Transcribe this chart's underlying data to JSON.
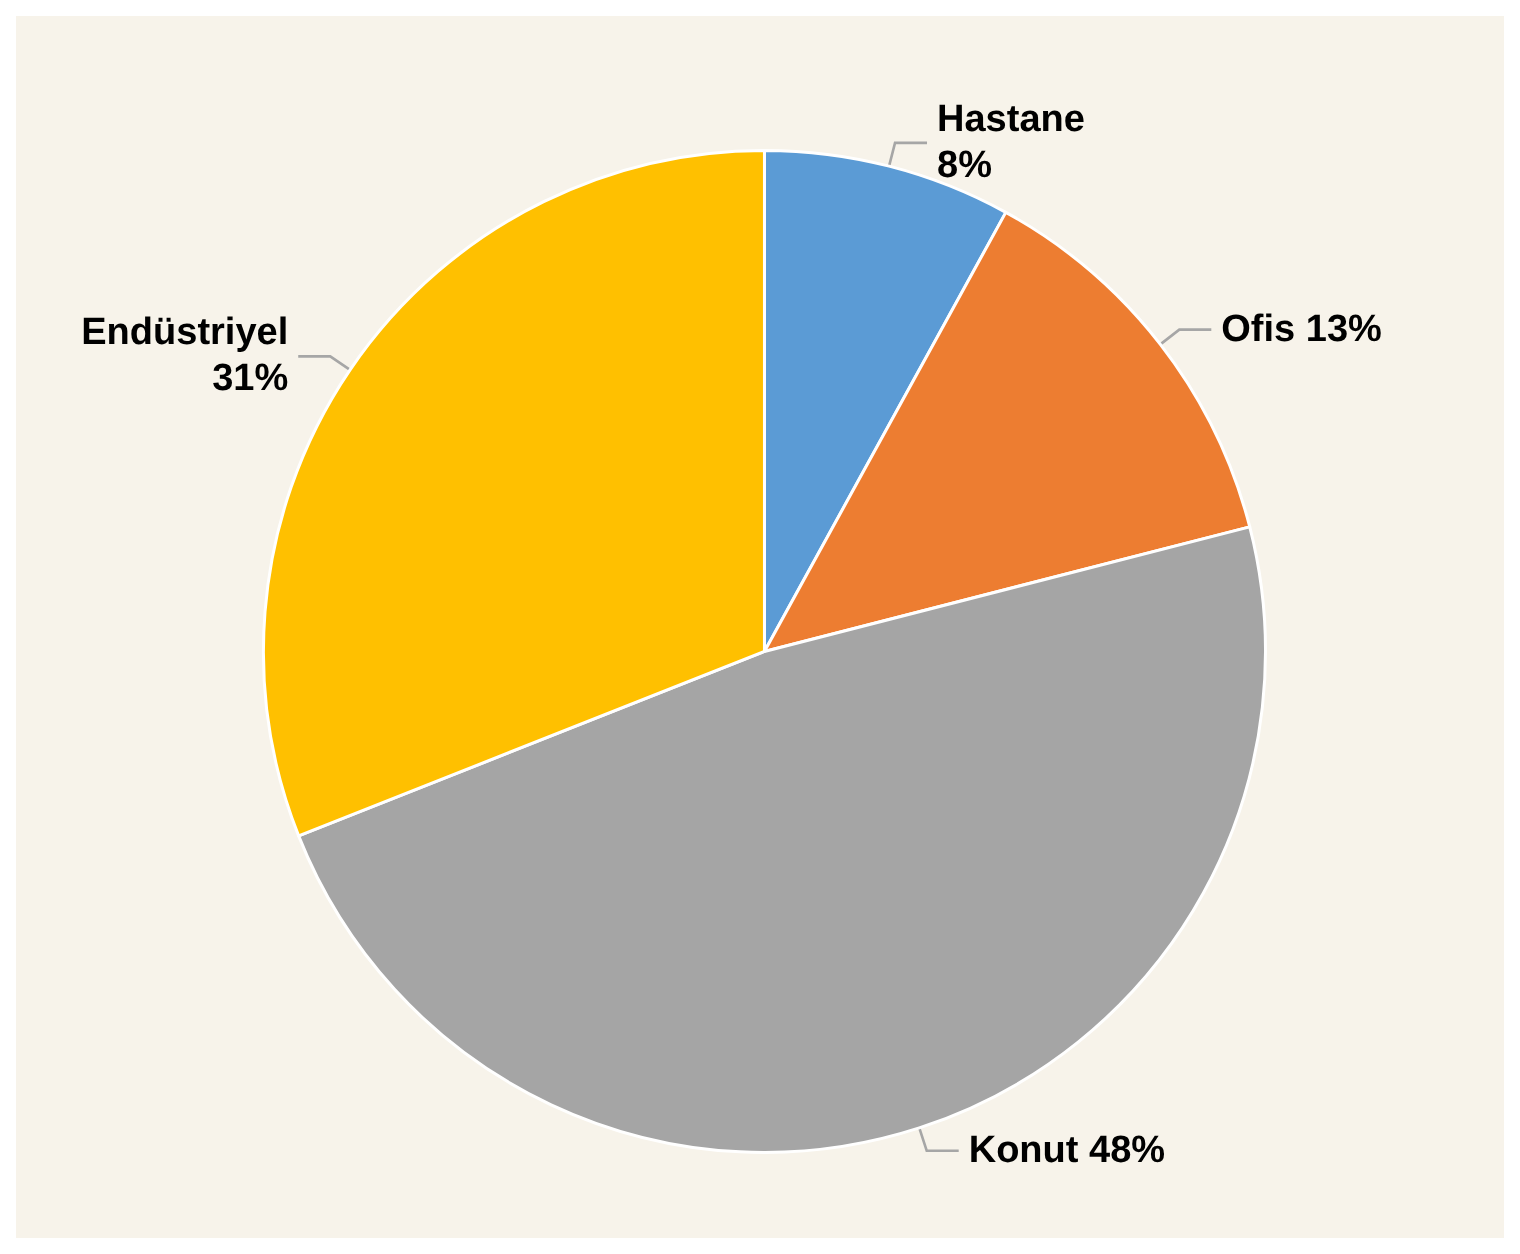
{
  "chart_data": {
    "type": "pie",
    "categories": [
      "Hastane",
      "Ofis",
      "Konut",
      "Endüstriyel"
    ],
    "values": [
      8,
      13,
      48,
      31
    ],
    "colors": [
      "#5b9bd5",
      "#ed7d31",
      "#a5a5a5",
      "#ffc000"
    ],
    "value_labels": [
      "8%",
      "13%",
      "48%",
      "31%"
    ],
    "legend": false
  }
}
